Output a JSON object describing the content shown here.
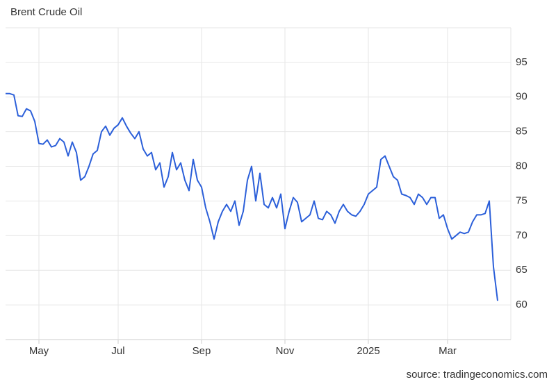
{
  "chart_data": {
    "type": "line",
    "title": "Brent Crude Oil",
    "source": "source: tradingeconomics.com",
    "categories": [
      null,
      null,
      null,
      null,
      null,
      null,
      null,
      null,
      "May",
      null,
      null,
      null,
      null,
      null,
      null,
      null,
      null,
      null,
      null,
      null,
      null,
      null,
      null,
      null,
      null,
      null,
      null,
      "Jul",
      null,
      null,
      null,
      null,
      null,
      null,
      null,
      null,
      null,
      null,
      null,
      null,
      null,
      null,
      null,
      null,
      null,
      null,
      null,
      "Sep",
      null,
      null,
      null,
      null,
      null,
      null,
      null,
      null,
      null,
      null,
      null,
      null,
      null,
      null,
      null,
      null,
      null,
      null,
      null,
      "Nov",
      null,
      null,
      null,
      null,
      null,
      null,
      null,
      null,
      null,
      null,
      null,
      null,
      null,
      null,
      null,
      null,
      null,
      null,
      null,
      "2025",
      null,
      null,
      null,
      null,
      null,
      null,
      null,
      null,
      null,
      null,
      null,
      null,
      null,
      null,
      null,
      null,
      null,
      null,
      "Mar",
      null,
      null,
      null,
      null,
      null,
      null,
      null,
      null,
      null,
      null,
      null,
      null
    ],
    "values": [
      90.5,
      90.5,
      90.3,
      87.3,
      87.2,
      88.3,
      88,
      86.5,
      83.3,
      83.2,
      83.8,
      82.8,
      83,
      84,
      83.5,
      81.5,
      83.5,
      82,
      78,
      78.5,
      80,
      81.8,
      82.3,
      85,
      85.8,
      84.5,
      85.5,
      86,
      87,
      85.8,
      84.8,
      84,
      85,
      82.5,
      81.5,
      82,
      79.5,
      80.5,
      77,
      78.5,
      82,
      79.5,
      80.5,
      78,
      76.5,
      81,
      78,
      77,
      74,
      72,
      69.5,
      72,
      73.5,
      74.5,
      73.5,
      75,
      71.5,
      73.5,
      78,
      80,
      75,
      79,
      74.5,
      74,
      75.5,
      74,
      76,
      71,
      73.5,
      75.5,
      74.8,
      72,
      72.5,
      73,
      75,
      72.5,
      72.3,
      73.5,
      73,
      71.8,
      73.5,
      74.5,
      73.5,
      73,
      72.8,
      73.5,
      74.5,
      76,
      76.5,
      77,
      81,
      81.5,
      80,
      78.5,
      78,
      76,
      75.8,
      75.5,
      74.5,
      76,
      75.5,
      74.5,
      75.5,
      75.5,
      72.5,
      73,
      71,
      69.5,
      70,
      70.5,
      70.3,
      70.5,
      72,
      73,
      73,
      73.2,
      75,
      65.5,
      60.6
    ],
    "color": "#2b5fd9",
    "ylim": [
      55,
      100
    ],
    "yticks": [
      60,
      65,
      70,
      75,
      80,
      85,
      90,
      95
    ],
    "grid": true
  }
}
